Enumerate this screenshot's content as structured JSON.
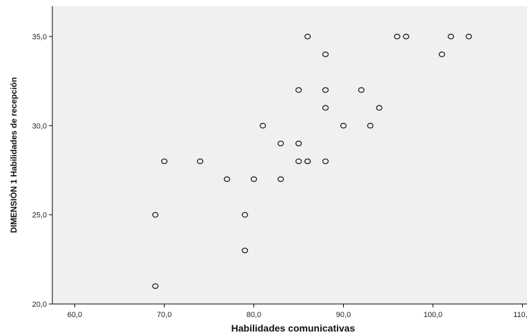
{
  "chart_data": {
    "type": "scatter",
    "title": "",
    "xlabel": "Habilidades comunicativas",
    "ylabel": "DIMENSIÓN 1 Habilidades de recepción",
    "xlim": [
      57.5,
      110.5
    ],
    "ylim": [
      20.0,
      36.7
    ],
    "xticks": [
      60,
      70,
      80,
      90,
      100,
      110
    ],
    "xtick_labels": [
      "60,0",
      "70,0",
      "80,0",
      "90,0",
      "100,0",
      "110,0"
    ],
    "yticks": [
      20,
      25,
      30,
      35
    ],
    "ytick_labels": [
      "20,0",
      "25,0",
      "30,0",
      "35,0"
    ],
    "grid": false,
    "legend": "none",
    "colors": {
      "plot_bg": "#f0f0f0",
      "marker_edge": "#222222",
      "marker_fill": "#f0f0f0",
      "axis": "#000000"
    },
    "points": [
      {
        "x": 69,
        "y": 21
      },
      {
        "x": 69,
        "y": 25
      },
      {
        "x": 70,
        "y": 28
      },
      {
        "x": 74,
        "y": 28
      },
      {
        "x": 77,
        "y": 27
      },
      {
        "x": 79,
        "y": 23
      },
      {
        "x": 79,
        "y": 25
      },
      {
        "x": 80,
        "y": 27
      },
      {
        "x": 81,
        "y": 30
      },
      {
        "x": 83,
        "y": 27
      },
      {
        "x": 83,
        "y": 29
      },
      {
        "x": 85,
        "y": 28
      },
      {
        "x": 85,
        "y": 29
      },
      {
        "x": 85,
        "y": 29
      },
      {
        "x": 85,
        "y": 32
      },
      {
        "x": 86,
        "y": 28
      },
      {
        "x": 86,
        "y": 28
      },
      {
        "x": 86,
        "y": 35
      },
      {
        "x": 88,
        "y": 28
      },
      {
        "x": 88,
        "y": 31
      },
      {
        "x": 88,
        "y": 32
      },
      {
        "x": 88,
        "y": 34
      },
      {
        "x": 90,
        "y": 30
      },
      {
        "x": 92,
        "y": 32
      },
      {
        "x": 93,
        "y": 30
      },
      {
        "x": 94,
        "y": 31
      },
      {
        "x": 96,
        "y": 35
      },
      {
        "x": 97,
        "y": 35
      },
      {
        "x": 101,
        "y": 34
      },
      {
        "x": 102,
        "y": 35
      },
      {
        "x": 104,
        "y": 35
      }
    ]
  }
}
